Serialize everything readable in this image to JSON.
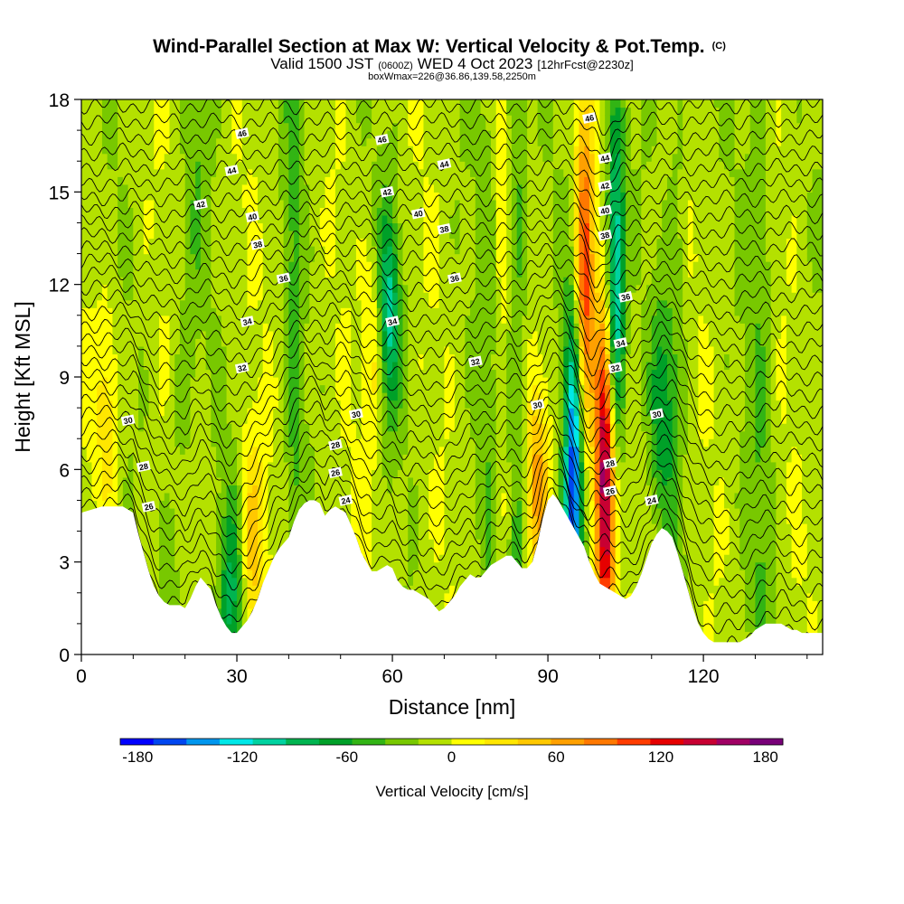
{
  "chart_data": {
    "type": "heatmap",
    "title": "Wind-Parallel Section at Max W: Vertical Velocity & Pot.Temp.",
    "copyright": "(C)",
    "subtitle_parts": [
      "Valid 1500 JST",
      "(0600Z)",
      "WED 4 Oct 2023",
      "[12hrFcst@2230z]"
    ],
    "subtitle2": "boxWmax=226@36.86,139.58,2250m",
    "xlabel": "Distance [nm]",
    "ylabel": "Height [Kft MSL]",
    "xlim": [
      0,
      143
    ],
    "ylim": [
      0,
      18
    ],
    "x_ticks": [
      0,
      30,
      60,
      90,
      120
    ],
    "y_ticks": [
      0,
      3,
      6,
      9,
      12,
      15,
      18
    ],
    "colorbar": {
      "label": "Vertical Velocity [cm/s]",
      "range": [
        -190,
        190
      ],
      "step": 20,
      "tick_values": [
        -180,
        -120,
        -60,
        0,
        60,
        120,
        180
      ],
      "colors": [
        "#0000ff",
        "#0046f0",
        "#0096ee",
        "#00e8e8",
        "#00d2a0",
        "#00b450",
        "#00a028",
        "#32b414",
        "#78c800",
        "#b4e100",
        "#ffff00",
        "#ffe600",
        "#ffc800",
        "#ffa000",
        "#ff7800",
        "#ff3c00",
        "#e60000",
        "#c80032",
        "#a00064",
        "#780078"
      ]
    },
    "series": [
      {
        "name": "Vertical Velocity",
        "units": "cm/s",
        "features": [
          {
            "x": 97,
            "z": 12,
            "w": 130
          },
          {
            "x": 101,
            "z": 5.5,
            "w": 190
          },
          {
            "x": 95,
            "z": 5.5,
            "w": -170
          },
          {
            "x": 103,
            "z": 12,
            "w": -130
          },
          {
            "x": 59,
            "z": 11,
            "w": -110
          },
          {
            "x": 29,
            "z": 1.8,
            "w": -70
          },
          {
            "x": 88,
            "z": 5.5,
            "w": 70
          },
          {
            "x": 57,
            "z": 10,
            "w": 60
          },
          {
            "x": 33,
            "z": 3.5,
            "w": 60
          },
          {
            "x": 5,
            "z": 8,
            "w": 40
          },
          {
            "x": 112,
            "z": 8,
            "w": -60
          }
        ]
      },
      {
        "name": "Potential Temperature",
        "contour_labels": [
          {
            "value": "46",
            "x": 31,
            "z": 16.9
          },
          {
            "value": "46",
            "x": 58,
            "z": 16.7
          },
          {
            "value": "46",
            "x": 98,
            "z": 17.4
          },
          {
            "value": "44",
            "x": 29,
            "z": 15.7
          },
          {
            "value": "44",
            "x": 70,
            "z": 15.9
          },
          {
            "value": "44",
            "x": 101,
            "z": 16.1
          },
          {
            "value": "42",
            "x": 23,
            "z": 14.6
          },
          {
            "value": "42",
            "x": 59,
            "z": 15.0
          },
          {
            "value": "42",
            "x": 101,
            "z": 15.2
          },
          {
            "value": "40",
            "x": 33,
            "z": 14.2
          },
          {
            "value": "40",
            "x": 65,
            "z": 14.3
          },
          {
            "value": "40",
            "x": 101,
            "z": 14.4
          },
          {
            "value": "38",
            "x": 34,
            "z": 13.3
          },
          {
            "value": "38",
            "x": 70,
            "z": 13.8
          },
          {
            "value": "38",
            "x": 101,
            "z": 13.6
          },
          {
            "value": "36",
            "x": 39,
            "z": 12.2
          },
          {
            "value": "36",
            "x": 72,
            "z": 12.2
          },
          {
            "value": "36",
            "x": 105,
            "z": 11.6
          },
          {
            "value": "34",
            "x": 32,
            "z": 10.8
          },
          {
            "value": "34",
            "x": 60,
            "z": 10.8
          },
          {
            "value": "34",
            "x": 104,
            "z": 10.1
          },
          {
            "value": "32",
            "x": 31,
            "z": 9.3
          },
          {
            "value": "32",
            "x": 76,
            "z": 9.5
          },
          {
            "value": "32",
            "x": 103,
            "z": 9.3
          },
          {
            "value": "30",
            "x": 9,
            "z": 7.6
          },
          {
            "value": "30",
            "x": 53,
            "z": 7.8
          },
          {
            "value": "30",
            "x": 88,
            "z": 8.1
          },
          {
            "value": "30",
            "x": 111,
            "z": 7.8
          },
          {
            "value": "28",
            "x": 12,
            "z": 6.1
          },
          {
            "value": "28",
            "x": 49,
            "z": 6.8
          },
          {
            "value": "28",
            "x": 102,
            "z": 6.2
          },
          {
            "value": "26",
            "x": 13,
            "z": 4.8
          },
          {
            "value": "26",
            "x": 49,
            "z": 5.9
          },
          {
            "value": "26",
            "x": 102,
            "z": 5.3
          },
          {
            "value": "24",
            "x": 51,
            "z": 5.0
          },
          {
            "value": "24",
            "x": 110,
            "z": 5.0
          }
        ]
      }
    ],
    "terrain_kft": [
      [
        0,
        4.6
      ],
      [
        4,
        4.8
      ],
      [
        8,
        4.8
      ],
      [
        10,
        4.6
      ],
      [
        11,
        3.9
      ],
      [
        12,
        3.3
      ],
      [
        13,
        2.7
      ],
      [
        14,
        2.2
      ],
      [
        15,
        1.9
      ],
      [
        16,
        1.7
      ],
      [
        17,
        1.6
      ],
      [
        18,
        1.6
      ],
      [
        19,
        1.6
      ],
      [
        20,
        1.5
      ],
      [
        21,
        1.8
      ],
      [
        22,
        2.2
      ],
      [
        23,
        2.5
      ],
      [
        24,
        2.3
      ],
      [
        25,
        2.1
      ],
      [
        26,
        1.6
      ],
      [
        27,
        1.2
      ],
      [
        28,
        0.9
      ],
      [
        29,
        0.7
      ],
      [
        30,
        0.7
      ],
      [
        31,
        0.9
      ],
      [
        32,
        1.1
      ],
      [
        33,
        1.4
      ],
      [
        34,
        1.8
      ],
      [
        35,
        2.3
      ],
      [
        36,
        2.7
      ],
      [
        37,
        3.1
      ],
      [
        38,
        3.4
      ],
      [
        39,
        3.6
      ],
      [
        40,
        3.8
      ],
      [
        41,
        4.3
      ],
      [
        42,
        4.7
      ],
      [
        43,
        4.9
      ],
      [
        44,
        5.0
      ],
      [
        45,
        5.0
      ],
      [
        46,
        4.9
      ],
      [
        47,
        4.5
      ],
      [
        48,
        4.7
      ],
      [
        49,
        4.8
      ],
      [
        50,
        4.7
      ],
      [
        51,
        4.6
      ],
      [
        52,
        4.2
      ],
      [
        53,
        3.8
      ],
      [
        54,
        3.3
      ],
      [
        55,
        3.0
      ],
      [
        56,
        2.7
      ],
      [
        57,
        2.7
      ],
      [
        58,
        2.8
      ],
      [
        59,
        2.9
      ],
      [
        60,
        2.8
      ],
      [
        61,
        2.4
      ],
      [
        62,
        2.2
      ],
      [
        63,
        2.1
      ],
      [
        64,
        2.1
      ],
      [
        65,
        2.0
      ],
      [
        66,
        1.9
      ],
      [
        67,
        1.8
      ],
      [
        68,
        1.6
      ],
      [
        69,
        1.4
      ],
      [
        70,
        1.5
      ],
      [
        71,
        1.7
      ],
      [
        72,
        1.9
      ],
      [
        73,
        2.2
      ],
      [
        74,
        2.4
      ],
      [
        75,
        2.6
      ],
      [
        76,
        2.5
      ],
      [
        77,
        2.5
      ],
      [
        78,
        2.7
      ],
      [
        79,
        2.9
      ],
      [
        80,
        3.0
      ],
      [
        81,
        3.1
      ],
      [
        82,
        3.2
      ],
      [
        83,
        3.2
      ],
      [
        84,
        3.0
      ],
      [
        85,
        2.8
      ],
      [
        86,
        2.8
      ],
      [
        87,
        3.0
      ],
      [
        88,
        3.6
      ],
      [
        89,
        4.4
      ],
      [
        90,
        5.0
      ],
      [
        91,
        5.2
      ],
      [
        92,
        5.0
      ],
      [
        93,
        4.7
      ],
      [
        94,
        4.4
      ],
      [
        95,
        4.1
      ],
      [
        96,
        3.8
      ],
      [
        97,
        3.5
      ],
      [
        98,
        3.0
      ],
      [
        99,
        2.6
      ],
      [
        100,
        2.3
      ],
      [
        101,
        2.2
      ],
      [
        102,
        2.1
      ],
      [
        103,
        2.0
      ],
      [
        104,
        1.9
      ],
      [
        105,
        1.8
      ],
      [
        106,
        1.9
      ],
      [
        107,
        2.2
      ],
      [
        108,
        2.6
      ],
      [
        109,
        3.1
      ],
      [
        110,
        3.6
      ],
      [
        111,
        3.9
      ],
      [
        112,
        4.1
      ],
      [
        113,
        4.0
      ],
      [
        114,
        3.8
      ],
      [
        115,
        3.3
      ],
      [
        116,
        2.7
      ],
      [
        117,
        2.1
      ],
      [
        118,
        1.5
      ],
      [
        119,
        1.0
      ],
      [
        120,
        0.7
      ],
      [
        121,
        0.5
      ],
      [
        122,
        0.4
      ],
      [
        123,
        0.4
      ],
      [
        124,
        0.4
      ],
      [
        125,
        0.4
      ],
      [
        126,
        0.4
      ],
      [
        127,
        0.4
      ],
      [
        128,
        0.5
      ],
      [
        129,
        0.6
      ],
      [
        130,
        0.8
      ],
      [
        131,
        0.9
      ],
      [
        132,
        1.0
      ],
      [
        133,
        1.0
      ],
      [
        134,
        1.0
      ],
      [
        135,
        1.0
      ],
      [
        136,
        0.9
      ],
      [
        137,
        0.8
      ],
      [
        138,
        0.8
      ],
      [
        139,
        0.7
      ],
      [
        140,
        0.7
      ],
      [
        141,
        0.7
      ],
      [
        142,
        0.7
      ],
      [
        143,
        0.7
      ]
    ]
  }
}
